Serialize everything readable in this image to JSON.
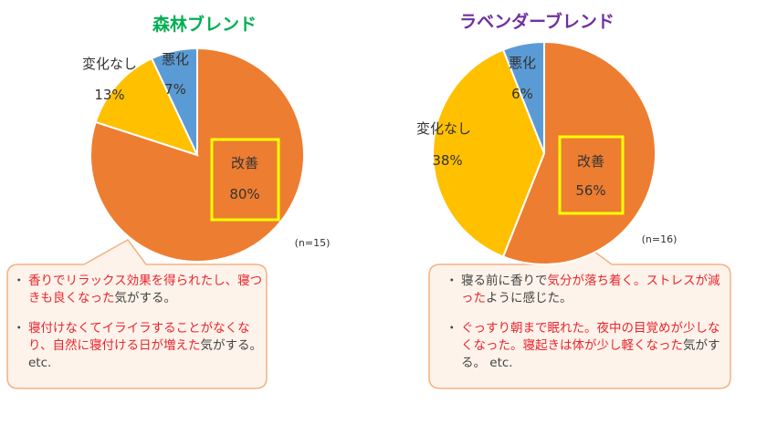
{
  "chart_data": [
    {
      "type": "pie",
      "title": "森林ブレンド",
      "n_label": "(n=15)",
      "slices": [
        {
          "label": "改善",
          "value": 80,
          "pct_label": "80%",
          "color": "#ED7D31"
        },
        {
          "label": "変化なし",
          "value": 13,
          "pct_label": "13%",
          "color": "#FFC000"
        },
        {
          "label": "悪化",
          "value": 7,
          "pct_label": "7%",
          "color": "#5B9BD5"
        }
      ],
      "comments": [
        [
          {
            "text": "香りでリラックス効果を得られたし、",
            "color": "#E8262E"
          },
          {
            "text": "寝つきも良くなった",
            "color": "#E8262E"
          },
          {
            "text": "気がする。",
            "color": "#444444"
          }
        ],
        [
          {
            "text": "寝付けなくてイライラすることが",
            "color": "#E8262E"
          },
          {
            "text": "なくなり、自然に寝付ける日が",
            "color": "#E8262E"
          },
          {
            "text": "増えた",
            "color": "#E8262E"
          },
          {
            "text": "気がする。etc.",
            "color": "#444444"
          }
        ]
      ]
    },
    {
      "type": "pie",
      "title": "ラベンダーブレンド",
      "n_label": "(n=16)",
      "slices": [
        {
          "label": "改善",
          "value": 56,
          "pct_label": "56%",
          "color": "#ED7D31"
        },
        {
          "label": "変化なし",
          "value": 38,
          "pct_label": "38%",
          "color": "#FFC000"
        },
        {
          "label": "悪化",
          "value": 6,
          "pct_label": "6%",
          "color": "#5B9BD5"
        }
      ],
      "comments": [
        [
          {
            "text": "寝る前に香りで",
            "color": "#444444"
          },
          {
            "text": "気分が落ち着く。",
            "color": "#E8262E"
          },
          {
            "text": "ストレスが減った",
            "color": "#E8262E"
          },
          {
            "text": "ように感じた。",
            "color": "#444444"
          }
        ],
        [
          {
            "text": "ぐっすり朝まで眠れた。夜中の目覚め",
            "color": "#E8262E"
          },
          {
            "text": "が少しなくなった。寝起きは",
            "color": "#E8262E"
          },
          {
            "text": "体が少し軽くなった",
            "color": "#E8262E"
          },
          {
            "text": "気がする。 etc.",
            "color": "#444444"
          }
        ]
      ]
    }
  ],
  "colors": {
    "title_left": "#00B050",
    "title_right": "#7030A0",
    "highlight_box": "#FFFF00",
    "bubble_fill": "#FEF3EA",
    "bubble_stroke": "#F4B183"
  }
}
